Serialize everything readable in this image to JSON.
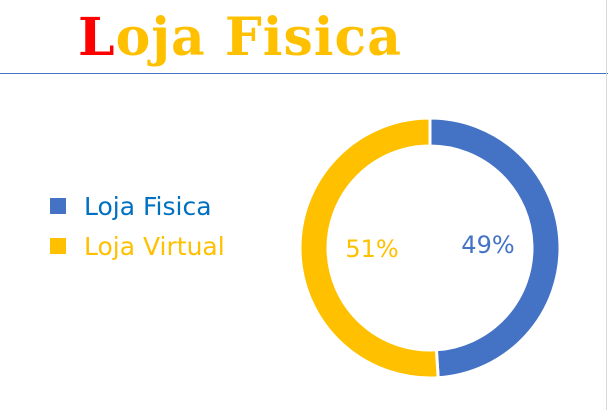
{
  "title": {
    "first_letter": "L",
    "rest": "oja Fisica"
  },
  "colors": {
    "title_first": "#FF0000",
    "title_rest": "#FFC000",
    "rule": "#4472C4",
    "legend_fisica_text": "#0070C0",
    "legend_virtual_text": "#FFC000"
  },
  "chart_data": {
    "type": "pie",
    "style": "donut",
    "categories": [
      "Loja Fisica",
      "Loja Virtual"
    ],
    "values": [
      49,
      51
    ],
    "data_labels": [
      "49%",
      "51%"
    ],
    "colors": [
      "#4472C4",
      "#FFC000"
    ],
    "legend_placement": "left",
    "legend_colors": [
      "#0070C0",
      "#FFC000"
    ]
  }
}
